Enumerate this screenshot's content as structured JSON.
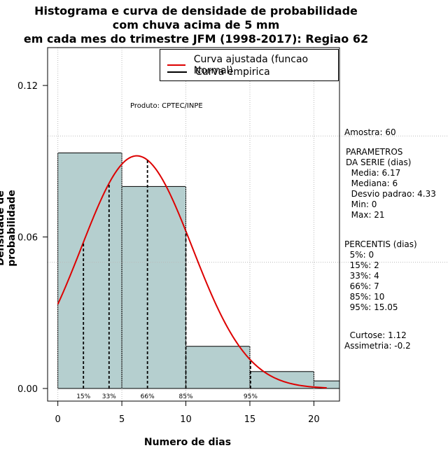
{
  "chart_data": {
    "type": "histogram",
    "title_lines": [
      "Histograma e curva de densidade de probabilidade",
      "com chuva acima de 5 mm",
      "em cada mes do trimestre JFM (1998-2017): Regiao 62"
    ],
    "xlabel": "Numero de dias",
    "ylabel": "Densidade de probabilidade",
    "xlim": [
      -0.8,
      22
    ],
    "ylim": [
      -0.005,
      0.135
    ],
    "xticks": [
      0,
      5,
      10,
      15,
      20
    ],
    "yticks": [
      0.0,
      0.06,
      0.12
    ],
    "ytick_labels": [
      "0.00",
      "0.06",
      "0.12"
    ],
    "bins": [
      {
        "start": 0,
        "end": 5,
        "density": 0.0933
      },
      {
        "start": 5,
        "end": 10,
        "density": 0.08
      },
      {
        "start": 10,
        "end": 15,
        "density": 0.0167
      },
      {
        "start": 15,
        "end": 20,
        "density": 0.0067
      },
      {
        "start": 20,
        "end": 22,
        "density": 0.003
      }
    ],
    "normal_fit": {
      "mean": 6.17,
      "sd": 4.33,
      "x_range": [
        0,
        21
      ]
    },
    "percentile_lines": [
      {
        "x": 2,
        "label": "15%"
      },
      {
        "x": 4,
        "label": "33%"
      },
      {
        "x": 7,
        "label": "66%"
      },
      {
        "x": 10,
        "label": "85%"
      },
      {
        "x": 15.05,
        "label": "95%"
      }
    ],
    "dotted_hlines": [
      0.1,
      0.05
    ],
    "legend": [
      {
        "label": "Curva ajustada (funcao Normal)",
        "color": "#dd0000"
      },
      {
        "label": "Curva empirica",
        "color": "#000000"
      }
    ],
    "annotation": "Produto: CPTEC/INPE",
    "colors": {
      "bar_fill": "#b5cfcf",
      "curve": "#dd0000",
      "grid": "#bbbbbb"
    }
  },
  "side_panel": {
    "amostra": "Amostra: 60",
    "parametros": "PARAMETROS\nDA SERIE (dias)\n  Media: 6.17\n  Mediana: 6\n  Desvio padrao: 4.33\n  Min: 0\n  Max: 21",
    "percentis": "PERCENTIS (dias)\n  5%: 0\n  15%: 2\n  33%: 4\n  66%: 7\n  85%: 10\n  95%: 15.05",
    "forma": "  Curtose: 1.12\nAssimetria: -0.2"
  }
}
